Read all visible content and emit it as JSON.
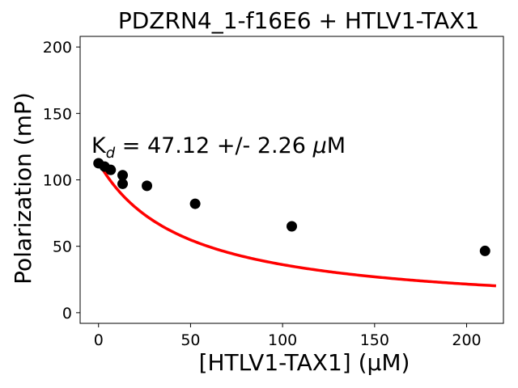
{
  "chart_data": {
    "type": "scatter",
    "title": "PDZRN4_1-f16E6 + HTLV1-TAX1",
    "xlabel": "[HTLV1-TAX1] (µM)",
    "ylabel": "Polarization (mP)",
    "xlim": [
      -10,
      220
    ],
    "ylim": [
      -8,
      208
    ],
    "xticks": [
      0,
      50,
      100,
      150,
      200
    ],
    "yticks": [
      0,
      50,
      100,
      150,
      200
    ],
    "annotation": {
      "prefix": "K",
      "sub": "d",
      "text": " = 47.12 +/- 2.26 ",
      "mu": "μ",
      "unit": "M"
    },
    "points": [
      {
        "x": 0,
        "y": 112.5
      },
      {
        "x": 3.3,
        "y": 110.0
      },
      {
        "x": 6.6,
        "y": 107.5
      },
      {
        "x": 13.1,
        "y": 103.5
      },
      {
        "x": 13.1,
        "y": 97.0
      },
      {
        "x": 26.3,
        "y": 95.5
      },
      {
        "x": 52.5,
        "y": 82.0
      },
      {
        "x": 105,
        "y": 65.0
      },
      {
        "x": 210,
        "y": 46.5
      }
    ],
    "fit": {
      "color": "#ff0000",
      "model": "y = top * Kd / (Kd + x)",
      "kd": 47.12,
      "top": 113.0,
      "x_range": [
        0,
        216
      ]
    },
    "point_color": "#000000",
    "grid": false
  }
}
